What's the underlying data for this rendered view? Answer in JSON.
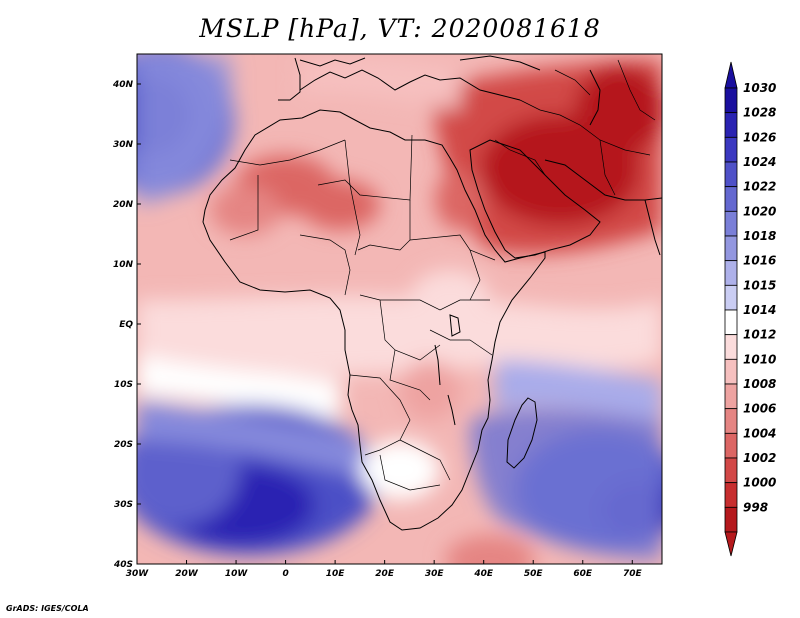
{
  "title": "MSLP [hPa], VT: 2020081618",
  "credit": "GrADS: IGES/COLA",
  "map": {
    "lon_range": [
      -30,
      76
    ],
    "lat_range": [
      -40,
      45
    ],
    "lon_ticks": [
      {
        "value": -30,
        "label": "30W"
      },
      {
        "value": -20,
        "label": "20W"
      },
      {
        "value": -10,
        "label": "10W"
      },
      {
        "value": 0,
        "label": "0"
      },
      {
        "value": 10,
        "label": "10E"
      },
      {
        "value": 20,
        "label": "20E"
      },
      {
        "value": 30,
        "label": "30E"
      },
      {
        "value": 40,
        "label": "40E"
      },
      {
        "value": 50,
        "label": "50E"
      },
      {
        "value": 60,
        "label": "60E"
      },
      {
        "value": 70,
        "label": "70E"
      }
    ],
    "lat_ticks": [
      {
        "value": 40,
        "label": "40N"
      },
      {
        "value": 30,
        "label": "30N"
      },
      {
        "value": 20,
        "label": "20N"
      },
      {
        "value": 10,
        "label": "10N"
      },
      {
        "value": 0,
        "label": "EQ"
      },
      {
        "value": -10,
        "label": "10S"
      },
      {
        "value": -20,
        "label": "20S"
      },
      {
        "value": -30,
        "label": "30S"
      },
      {
        "value": -40,
        "label": "40S"
      }
    ]
  },
  "colorbar": {
    "levels": [
      "1030",
      "1028",
      "1026",
      "1024",
      "1022",
      "1020",
      "1018",
      "1016",
      "1015",
      "1014",
      "1012",
      "1010",
      "1008",
      "1006",
      "1004",
      "1002",
      "1000",
      "998"
    ],
    "colors": [
      "#1a0f9e",
      "#2a23b2",
      "#3b38c0",
      "#4f51c8",
      "#6468d0",
      "#7a7fd8",
      "#9397e0",
      "#aeb1ea",
      "#cacdf3",
      "#ffffff",
      "#fbdcdc",
      "#f6c0bf",
      "#eea3a1",
      "#e58583",
      "#dc6664",
      "#d24847",
      "#c72e2f",
      "#b5191d"
    ],
    "top_arrow_color": "#1a0f9e",
    "bottom_arrow_color": "#b5191d"
  }
}
